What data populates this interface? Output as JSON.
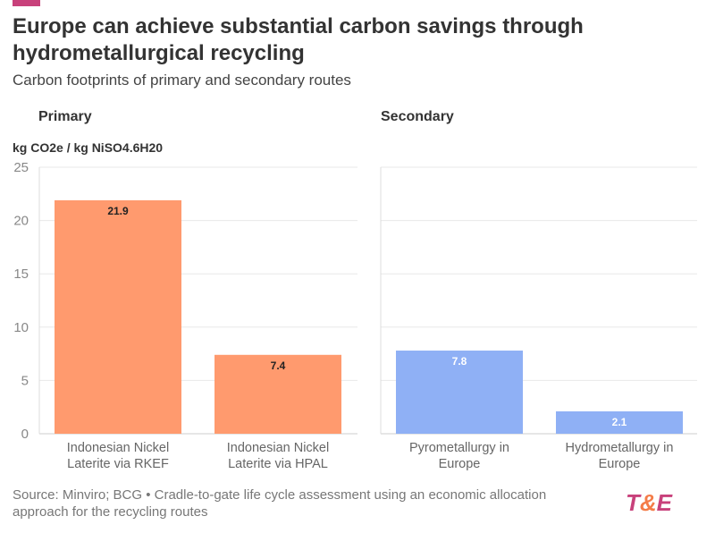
{
  "title": "Europe can achieve substantial carbon savings through hydrometallurgical recycling",
  "subtitle": "Carbon footprints of primary and secondary routes",
  "source": "Source: Minviro; BCG • Cradle-to-gate life cycle assessment using an economic allocation approach for the recycling routes",
  "logo": {
    "t": "T",
    "amp": "&",
    "e": "E"
  },
  "chart_data": {
    "type": "bar",
    "ylabel": "kg CO2e / kg NiSO4.6H20",
    "ylim": [
      0,
      25
    ],
    "yticks": [
      0,
      5,
      10,
      15,
      20,
      25
    ],
    "grid": true,
    "panels": [
      {
        "title": "Primary",
        "color": "#ff9a6e",
        "label_color": "#222",
        "categories": [
          [
            "Indonesian Nickel",
            "Laterite via RKEF"
          ],
          [
            "Indonesian Nickel",
            "Laterite via HPAL"
          ]
        ],
        "values": [
          21.9,
          7.4
        ]
      },
      {
        "title": "Secondary",
        "color": "#8fb0f5",
        "label_color": "#fff",
        "categories": [
          [
            "Pyrometallurgy in",
            "Europe"
          ],
          [
            "Hydrometallurgy in",
            "Europe"
          ]
        ],
        "values": [
          7.8,
          2.1
        ]
      }
    ]
  }
}
